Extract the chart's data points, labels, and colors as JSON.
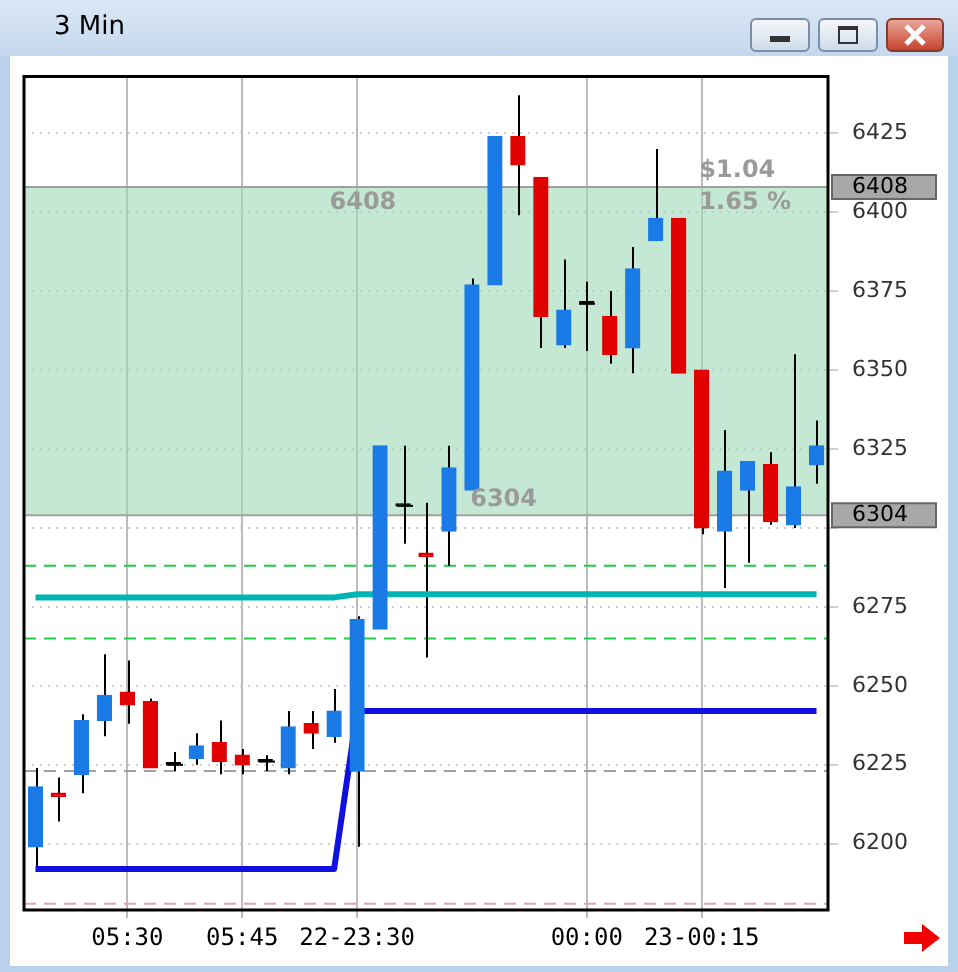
{
  "chart_data": {
    "type": "candlestick",
    "title": "3 Min",
    "categories": [
      null,
      null,
      null,
      null,
      "05:30",
      null,
      null,
      null,
      null,
      "05:45",
      null,
      null,
      null,
      null,
      "22-23:30",
      null,
      null,
      null,
      null,
      null,
      null,
      null,
      null,
      null,
      "00:00",
      null,
      null,
      null,
      null,
      "23-00:15",
      null,
      null,
      null,
      null,
      null
    ],
    "ohlc": [
      [
        6199,
        6224,
        6191,
        6218
      ],
      [
        6216,
        6221,
        6207,
        6215
      ],
      [
        6222,
        6241,
        6216,
        6239
      ],
      [
        6239,
        6260,
        6234,
        6247
      ],
      [
        6248,
        6258,
        6238,
        6244
      ],
      [
        6245,
        6246,
        6224,
        6224
      ],
      [
        6225,
        6229,
        6223,
        6225
      ],
      [
        6227,
        6235,
        6225,
        6231
      ],
      [
        6232,
        6239,
        6222,
        6226
      ],
      [
        6228,
        6230,
        6222,
        6225
      ],
      [
        6226,
        6228,
        6223,
        6226
      ],
      [
        6224,
        6242,
        6222,
        6237
      ],
      [
        6238,
        6242,
        6230,
        6235
      ],
      [
        6234,
        6249,
        6232,
        6242
      ],
      [
        6223,
        6272,
        6199,
        6271
      ],
      [
        6268,
        6326,
        6268,
        6326
      ],
      [
        6307,
        6326,
        6295,
        6307
      ],
      [
        6292,
        6308,
        6259,
        6291
      ],
      [
        6299,
        6326,
        6288,
        6319
      ],
      [
        6312,
        6379,
        6312,
        6377
      ],
      [
        6377,
        6424,
        6377,
        6424
      ],
      [
        6424,
        6437,
        6399,
        6415
      ],
      [
        6411,
        6411,
        6357,
        6367
      ],
      [
        6358,
        6385,
        6357,
        6369
      ],
      [
        6371,
        6378,
        6356,
        6371
      ],
      [
        6367,
        6375,
        6352,
        6355
      ],
      [
        6357,
        6389,
        6349,
        6382
      ],
      [
        6391,
        6420,
        6391,
        6398
      ],
      [
        6398,
        6398,
        6349,
        6349
      ],
      [
        6350,
        6350,
        6298,
        6300
      ],
      [
        6299,
        6331,
        6281,
        6318
      ],
      [
        6312,
        6321,
        6289,
        6321
      ],
      [
        6320,
        6324,
        6301,
        6302
      ],
      [
        6301,
        6355,
        6300,
        6313
      ],
      [
        6320,
        6334,
        6314,
        6326
      ]
    ],
    "colors": [
      "#1a7ae6",
      "#e00000",
      "#1a7ae6",
      "#1a7ae6",
      "#e00000",
      "#e00000",
      "#000000",
      "#1a7ae6",
      "#e00000",
      "#e00000",
      "#000000",
      "#1a7ae6",
      "#e00000",
      "#1a7ae6",
      "#1a7ae6",
      "#1a7ae6",
      "#000000",
      "#e00000",
      "#1a7ae6",
      "#1a7ae6",
      "#1a7ae6",
      "#e00000",
      "#e00000",
      "#1a7ae6",
      "#000000",
      "#e00000",
      "#1a7ae6",
      "#1a7ae6",
      "#e00000",
      "#e00000",
      "#1a7ae6",
      "#1a7ae6",
      "#e00000",
      "#1a7ae6",
      "#1a7ae6"
    ],
    "series": [
      {
        "type": "line",
        "color": "#00b4b4",
        "values": [
          6278,
          6278,
          6278,
          6278,
          6278,
          6278,
          6278,
          6278,
          6278,
          6278,
          6278,
          6278,
          6278,
          6278,
          6279,
          6279,
          6279,
          6279,
          6279,
          6279,
          6279,
          6279,
          6279,
          6279,
          6279,
          6279,
          6279,
          6279,
          6279,
          6279,
          6279,
          6279,
          6279,
          6279,
          6279
        ]
      },
      {
        "type": "line",
        "color": "#1010e0",
        "values": [
          6192,
          6192,
          6192,
          6192,
          6192,
          6192,
          6192,
          6192,
          6192,
          6192,
          6192,
          6192,
          6192,
          6192,
          6242,
          6242,
          6242,
          6242,
          6242,
          6242,
          6242,
          6242,
          6242,
          6242,
          6242,
          6242,
          6242,
          6242,
          6242,
          6242,
          6242,
          6242,
          6242,
          6242,
          6242
        ]
      }
    ],
    "ref_lines": [
      {
        "axis": "y",
        "value": 6408,
        "label": "6408",
        "color": "#a0a0a0",
        "line_style": "solid"
      },
      {
        "axis": "y",
        "value": 6304,
        "label": "6304",
        "color": "#a0a0a0",
        "line_style": "solid"
      },
      {
        "axis": "y",
        "value": 6288,
        "color": "#22cc44",
        "line_style": "dashed"
      },
      {
        "axis": "y",
        "value": 6265,
        "color": "#22cc44",
        "line_style": "dashed"
      },
      {
        "axis": "y",
        "value": 6223,
        "color": "#a0a0a0",
        "line_style": "dashed"
      },
      {
        "axis": "y",
        "value": 6181,
        "color": "#e0a0c0",
        "line_style": "dashed"
      }
    ],
    "bands": [
      {
        "axis": "y",
        "from": 6304,
        "to": 6408,
        "color": "#9fd8b8"
      }
    ],
    "annotations": [
      {
        "text": "6408",
        "y": 6408
      },
      {
        "text": "6304",
        "y": 6304
      },
      {
        "text": "$1.04",
        "y": 6408
      },
      {
        "text": "1.65 %",
        "y": 6408
      }
    ],
    "ylim": [
      6179,
      6443
    ],
    "yticks": [
      6200,
      6225,
      6250,
      6275,
      {
        "value": 6300,
        "label": null
      },
      6325,
      6350,
      6375,
      6400,
      6425
    ],
    "grid": true,
    "legend": false
  }
}
